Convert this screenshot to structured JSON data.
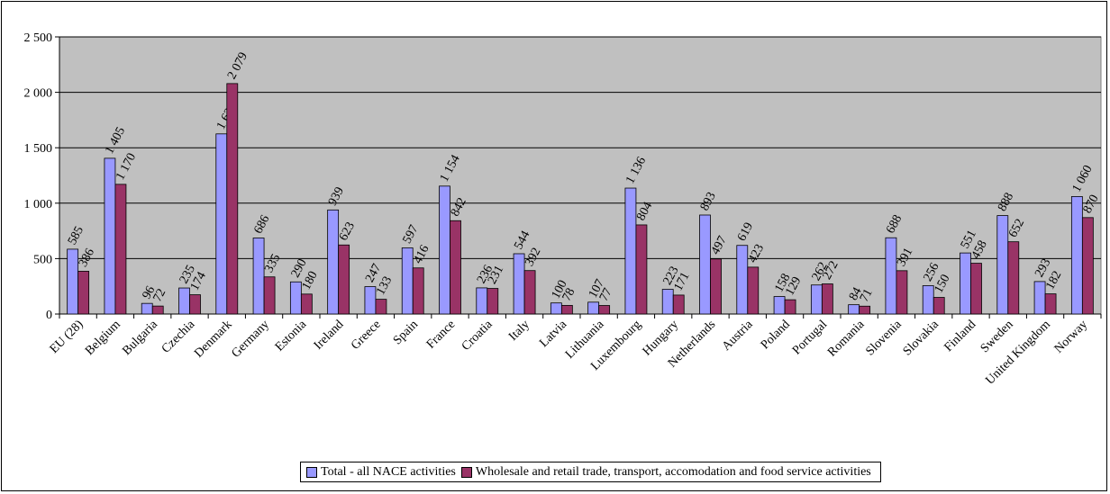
{
  "chart_data": {
    "type": "bar",
    "title": "",
    "xlabel": "",
    "ylabel": "",
    "ylim": [
      0,
      2500
    ],
    "yticks": [
      0,
      500,
      1000,
      1500,
      2000,
      2500
    ],
    "ytick_labels": [
      "0",
      "500",
      "1 000",
      "1 500",
      "2 000",
      "2 500"
    ],
    "grid": true,
    "legend_position": "bottom",
    "plot_background": "#c0c0c0",
    "categories": [
      "EU (28)",
      "Belgium",
      "Bulgaria",
      "Czechia",
      "Denmark",
      "Germany",
      "Estonia",
      "Ireland",
      "Greece",
      "Spain",
      "France",
      "Croatia",
      "Italy",
      "Latvia",
      "Lithuania",
      "Luxembourg",
      "Hungary",
      "Netherlands",
      "Austria",
      "Poland",
      "Portugal",
      "Romania",
      "Slovenia",
      "Slovakia",
      "Finland",
      "Sweden",
      "United Kingdom",
      "Norway"
    ],
    "series": [
      {
        "name": "Total - all NACE activities",
        "color": "#9999ff",
        "values": [
          585,
          1405,
          96,
          235,
          1625,
          686,
          290,
          939,
          247,
          597,
          1154,
          236,
          544,
          100,
          107,
          1136,
          223,
          893,
          619,
          158,
          262,
          84,
          688,
          256,
          551,
          888,
          293,
          1060
        ],
        "labels": [
          "585",
          "1 405",
          "96",
          "235",
          "1 625",
          "686",
          "290",
          "939",
          "247",
          "597",
          "1 154",
          "236",
          "544",
          "100",
          "107",
          "1 136",
          "223",
          "893",
          "619",
          "158",
          "262",
          "84",
          "688",
          "256",
          "551",
          "888",
          "293",
          "1 060"
        ]
      },
      {
        "name": "Wholesale and retail trade, transport, accomodation and food service activities",
        "color": "#993366",
        "values": [
          386,
          1170,
          72,
          174,
          2079,
          335,
          180,
          623,
          133,
          416,
          842,
          231,
          392,
          78,
          77,
          804,
          171,
          497,
          423,
          129,
          272,
          71,
          391,
          150,
          458,
          652,
          182,
          870
        ],
        "labels": [
          "386",
          "1 170",
          "72",
          "174",
          "2 079",
          "335",
          "180",
          "623",
          "133",
          "416",
          "842",
          "231",
          "392",
          "78",
          "77",
          "804",
          "171",
          "497",
          "423",
          "129",
          "272",
          "71",
          "391",
          "150",
          "458",
          "652",
          "182",
          "870"
        ]
      }
    ]
  }
}
